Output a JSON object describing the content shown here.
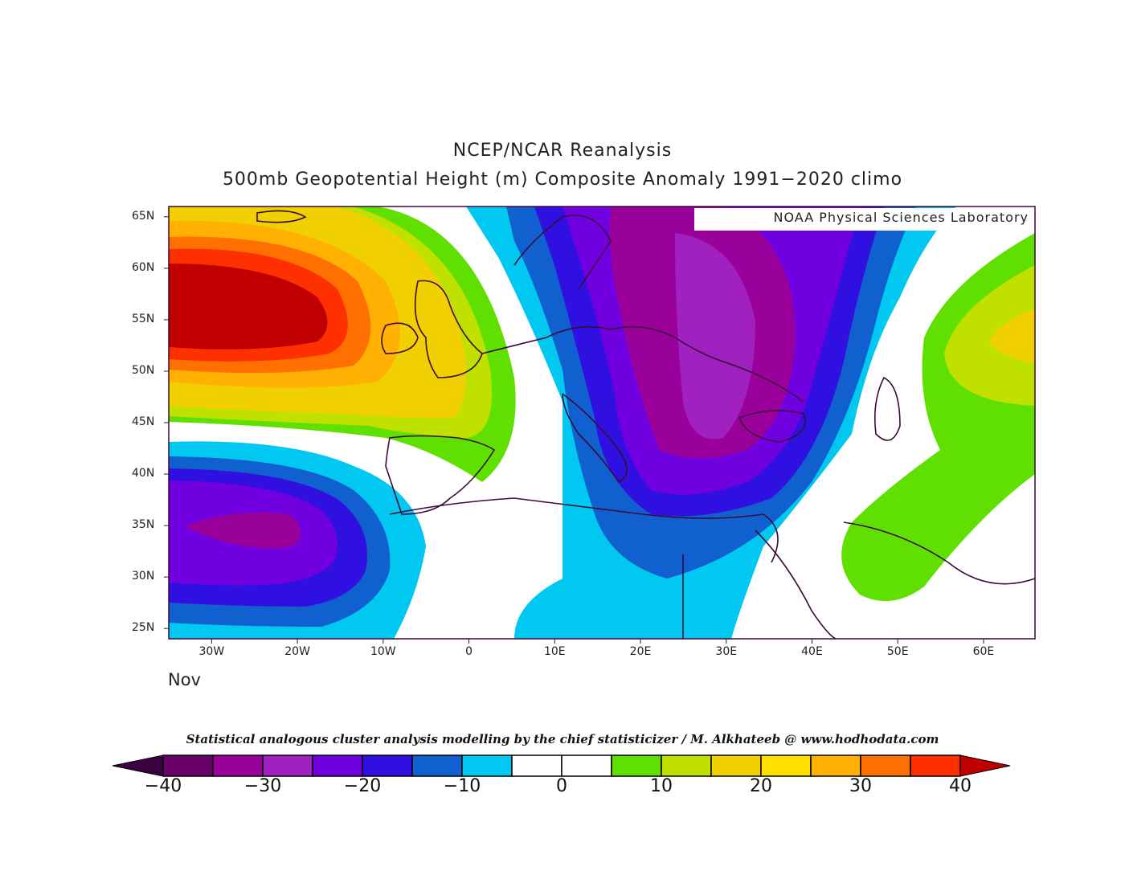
{
  "title": {
    "line1": "NCEP/NCAR Reanalysis",
    "line2": "500mb Geopotential Height (m) Composite Anomaly 1991−2020 climo"
  },
  "watermark": "NOAA Physical Sciences Laboratory",
  "month": "Nov",
  "credit": "Statistical analogous cluster analysis modelling by the chief statisticizer / M. Alkhateeb @ www.hodhodata.com",
  "axes": {
    "lat_ticks": [
      "65N",
      "60N",
      "55N",
      "50N",
      "45N",
      "40N",
      "35N",
      "30N",
      "25N"
    ],
    "lon_ticks": [
      "30W",
      "20W",
      "10W",
      "0",
      "10E",
      "20E",
      "30E",
      "40E",
      "50E",
      "60E"
    ]
  },
  "colorbar": {
    "labels": [
      "−40",
      "−30",
      "−20",
      "−10",
      "0",
      "10",
      "20",
      "30",
      "40"
    ],
    "colors": [
      "#6a006a",
      "#9a009a",
      "#a020c0",
      "#7000e0",
      "#3010e0",
      "#1060d0",
      "#00c8f0",
      "#ffffff",
      "#ffffff",
      "#60e000",
      "#c0e000",
      "#f0d000",
      "#ffe000",
      "#ffb000",
      "#ff7000",
      "#ff3000"
    ],
    "low_extend": "#3a0040",
    "high_extend": "#c00000"
  },
  "map": {
    "lon_range": [
      -35,
      66
    ],
    "lat_range": [
      24,
      66
    ],
    "field": "500mb geopotential height anomaly (m)"
  }
}
